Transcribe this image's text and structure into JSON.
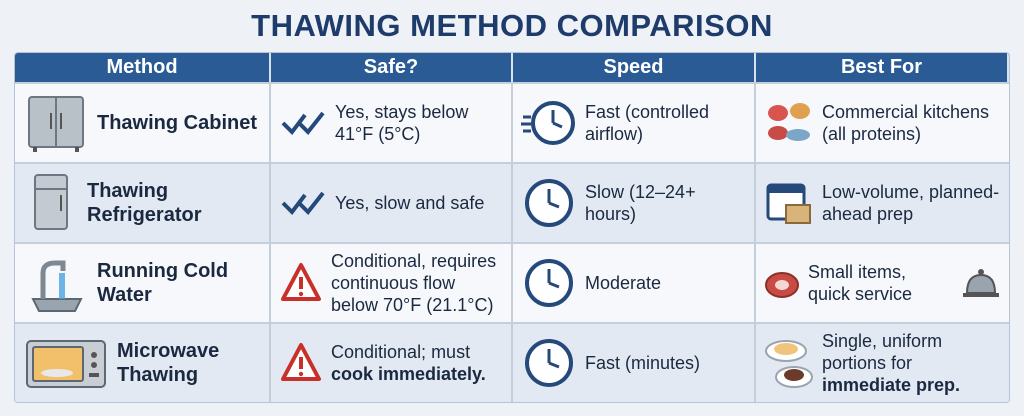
{
  "header": {
    "title": "THAWING METHOD COMPARISON"
  },
  "table": {
    "columns": [
      "Method",
      "Safe?",
      "Speed",
      "Best For"
    ],
    "rows": [
      {
        "method": "Thawing Cabinet",
        "safe": {
          "text": "Yes, stays below 41°F (5°C)"
        },
        "speed": "Fast (controlled airflow)",
        "best_for": {
          "text": "Commercial kitchens (all proteins)"
        }
      },
      {
        "method": "Thawing Refrigerator",
        "safe": {
          "text": "Yes, slow and safe"
        },
        "speed": "Slow (12–24+ hours)",
        "best_for": {
          "text": "Low-volume, planned-ahead prep"
        }
      },
      {
        "method": "Running Cold Water",
        "safe": {
          "text": "Conditional, requires continuous flow below 70°F (21.1°C)"
        },
        "speed": "Moderate",
        "best_for": {
          "text": "Small items, quick service"
        }
      },
      {
        "method": "Microwave Thawing",
        "safe": {
          "text": "Conditional; must",
          "emphasis": "cook immediately."
        },
        "speed": "Fast (minutes)",
        "best_for": {
          "text": "Single, uniform portions for",
          "emphasis": "immediate prep."
        }
      }
    ]
  }
}
